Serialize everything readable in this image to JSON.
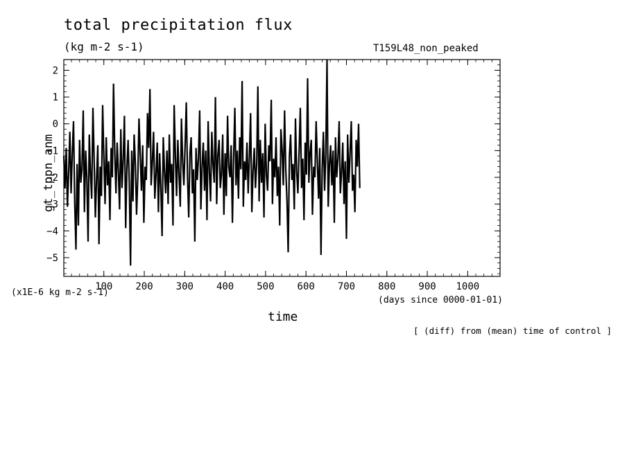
{
  "header": {
    "title": "total precipitation flux",
    "units": "(kg m-2 s-1)",
    "run_name": "T159L48_non_peaked"
  },
  "axes": {
    "ylabel": "gt_tppn_anm",
    "xlabel": "time",
    "y_scale_note": "(x1E-6 kg m-2 s-1)",
    "x_units": "(days since 0000-01-01)"
  },
  "footer": {
    "note": "[ (diff) from (mean) time of control ]"
  },
  "chart_data": {
    "type": "line",
    "title": "total precipitation flux",
    "xlabel": "time",
    "ylabel": "gt_tppn_anm",
    "xlim": [
      1,
      1080
    ],
    "ylim": [
      -5.7,
      2.4
    ],
    "x_ticks": [
      100,
      200,
      300,
      400,
      500,
      600,
      700,
      800,
      900,
      1000
    ],
    "y_ticks": [
      -5,
      -4,
      -3,
      -2,
      -1,
      0,
      1,
      2
    ],
    "series_color": "#000000",
    "series": [
      {
        "x_start": 1,
        "x_step": 3,
        "values": [
          -1.2,
          -2.4,
          -0.9,
          -3.1,
          -1.8,
          -0.3,
          -2.6,
          -1.1,
          0.1,
          -2.9,
          -4.7,
          -1.5,
          -3.8,
          -0.6,
          -2.2,
          -1.7,
          0.5,
          -3.3,
          -1.0,
          -2.0,
          -4.4,
          -0.4,
          -1.9,
          -2.8,
          0.6,
          -1.3,
          -3.5,
          -2.1,
          -0.8,
          -4.5,
          -1.6,
          -2.7,
          0.7,
          -1.2,
          -3.0,
          -0.5,
          -2.3,
          -1.4,
          -3.6,
          -0.9,
          -2.0,
          1.5,
          -1.1,
          -2.6,
          -0.7,
          -1.8,
          -3.2,
          -0.2,
          -2.4,
          -1.3,
          0.3,
          -3.9,
          -1.7,
          -0.6,
          -2.2,
          -5.3,
          -1.0,
          -2.9,
          -0.4,
          -1.5,
          -3.4,
          -2.0,
          0.2,
          -1.2,
          -2.5,
          -0.8,
          -3.7,
          -1.6,
          -2.1,
          0.4,
          -0.9,
          1.3,
          -2.3,
          -1.4,
          -0.3,
          -2.8,
          -1.9,
          -0.7,
          -3.3,
          -1.1,
          -2.4,
          -4.2,
          -0.5,
          -1.8,
          -2.6,
          -1.0,
          -3.0,
          -0.4,
          -2.2,
          -1.5,
          -3.8,
          0.7,
          -1.2,
          -2.7,
          -0.6,
          -1.9,
          -3.1,
          0.2,
          -1.4,
          -2.3,
          -0.8,
          0.8,
          -2.0,
          -3.5,
          -1.1,
          -0.5,
          -2.6,
          -1.7,
          -4.4,
          -0.9,
          -2.1,
          -1.3,
          0.5,
          -3.2,
          -1.6,
          -0.7,
          -2.5,
          -1.0,
          -3.6,
          0.1,
          -1.8,
          -2.9,
          -0.3,
          -1.5,
          -2.2,
          1.0,
          -3.0,
          -1.2,
          -0.6,
          -2.4,
          -1.9,
          -0.4,
          -3.4,
          -1.1,
          -2.7,
          0.3,
          -1.6,
          -2.0,
          -0.8,
          -3.7,
          -1.3,
          0.6,
          -2.3,
          -1.0,
          -2.8,
          -0.5,
          -1.7,
          1.6,
          -3.1,
          -1.4,
          -2.1,
          -0.7,
          -2.6,
          -1.2,
          0.4,
          -3.3,
          -1.8,
          -0.9,
          -2.4,
          -1.5,
          1.4,
          -2.9,
          -0.6,
          -2.2,
          -1.1,
          -3.5,
          0.0,
          -1.9,
          -2.5,
          -0.8,
          -1.4,
          0.9,
          -3.0,
          -1.3,
          -2.0,
          -0.5,
          -2.7,
          -1.6,
          -3.8,
          -0.2,
          -1.0,
          -2.3,
          0.5,
          -1.7,
          -2.9,
          -4.8,
          -1.2,
          -0.4,
          -2.1,
          -1.5,
          -3.2,
          0.2,
          -1.8,
          -2.6,
          -1.0,
          0.6,
          -2.4,
          -1.3,
          -3.6,
          -0.7,
          -1.9,
          1.7,
          -2.2,
          -1.1,
          -0.6,
          -3.4,
          -1.6,
          -2.0,
          0.1,
          -1.4,
          -2.8,
          -0.9,
          -4.9,
          -1.7,
          -0.3,
          -2.5,
          -1.2,
          2.4,
          -3.1,
          -1.5,
          -0.8,
          -2.3,
          -1.0,
          -3.7,
          -0.5,
          -2.0,
          -1.3,
          0.1,
          -2.6,
          -1.8,
          -0.7,
          -3.0,
          -1.4,
          -4.3,
          -0.4,
          -2.2,
          -1.1,
          0.1,
          -2.5,
          -1.9,
          -3.3,
          -0.6,
          -1.6,
          0.0,
          -2.4
        ]
      }
    ]
  }
}
